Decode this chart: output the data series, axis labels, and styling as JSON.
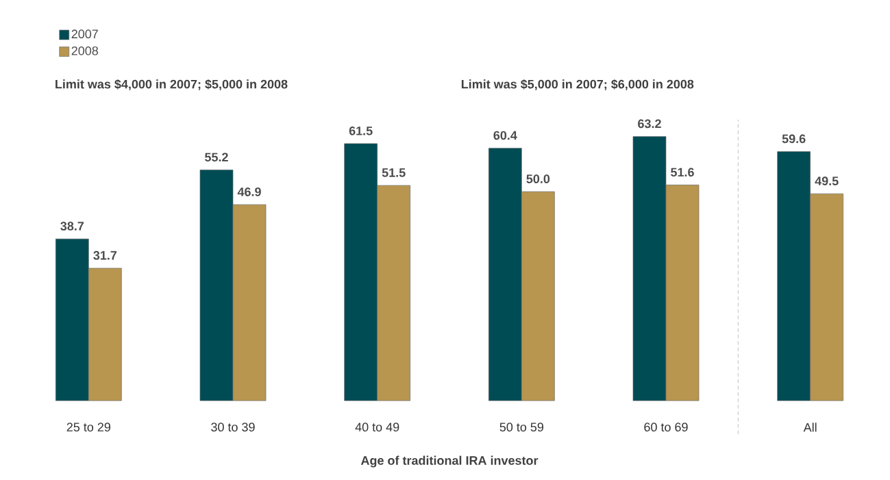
{
  "chart_data": {
    "type": "bar",
    "categories": [
      "25 to 29",
      "30 to 39",
      "40 to 49",
      "50 to 59",
      "60 to 69",
      "All"
    ],
    "series": [
      {
        "name": "2007",
        "color": "#004c55",
        "values": [
          38.7,
          55.2,
          61.5,
          60.4,
          63.2,
          59.6
        ],
        "value_labels": [
          "38.7",
          "55.2",
          "61.5",
          "60.4",
          "63.2",
          "59.6"
        ]
      },
      {
        "name": "2008",
        "color": "#b89650",
        "values": [
          31.7,
          46.9,
          51.5,
          50.0,
          51.6,
          49.5
        ],
        "value_labels": [
          "31.7",
          "46.9",
          "51.5",
          "50.0",
          "51.6",
          "49.5"
        ]
      }
    ],
    "legend": "top left",
    "xlabel": "Age of traditional IRA investor",
    "annotations": [
      "Limit was $4,000 in 2007; $5,000 in 2008",
      "Limit was $5,000 in 2007; $6,000 in 2008"
    ]
  }
}
